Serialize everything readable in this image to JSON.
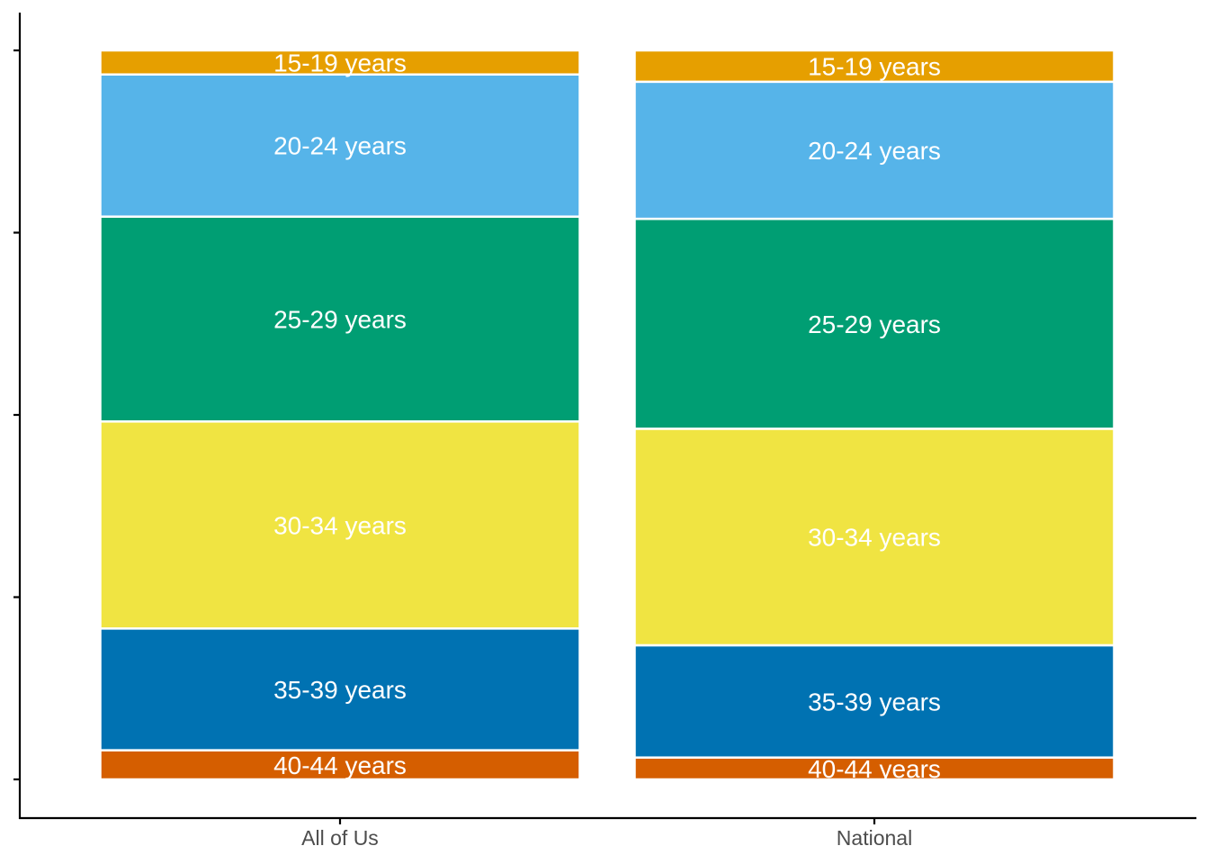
{
  "chart_data": {
    "type": "bar",
    "stacked": true,
    "percent": true,
    "categories": [
      "All of Us",
      "National"
    ],
    "ylim": [
      0,
      1
    ],
    "y_tick_labels_shown": false,
    "grid": false,
    "series": [
      {
        "name": "40-44 years",
        "color": "#D55E00",
        "values": [
          0.04,
          0.03
        ]
      },
      {
        "name": "35-39 years",
        "color": "#0072B2",
        "values": [
          0.167,
          0.154
        ]
      },
      {
        "name": "30-34 years",
        "color": "#F0E442",
        "values": [
          0.284,
          0.297
        ]
      },
      {
        "name": "25-29 years",
        "color": "#009E73",
        "values": [
          0.281,
          0.288
        ]
      },
      {
        "name": "20-24 years",
        "color": "#56B4E9",
        "values": [
          0.195,
          0.188
        ]
      },
      {
        "name": "15-19 years",
        "color": "#E69F00",
        "values": [
          0.033,
          0.043
        ]
      }
    ]
  }
}
